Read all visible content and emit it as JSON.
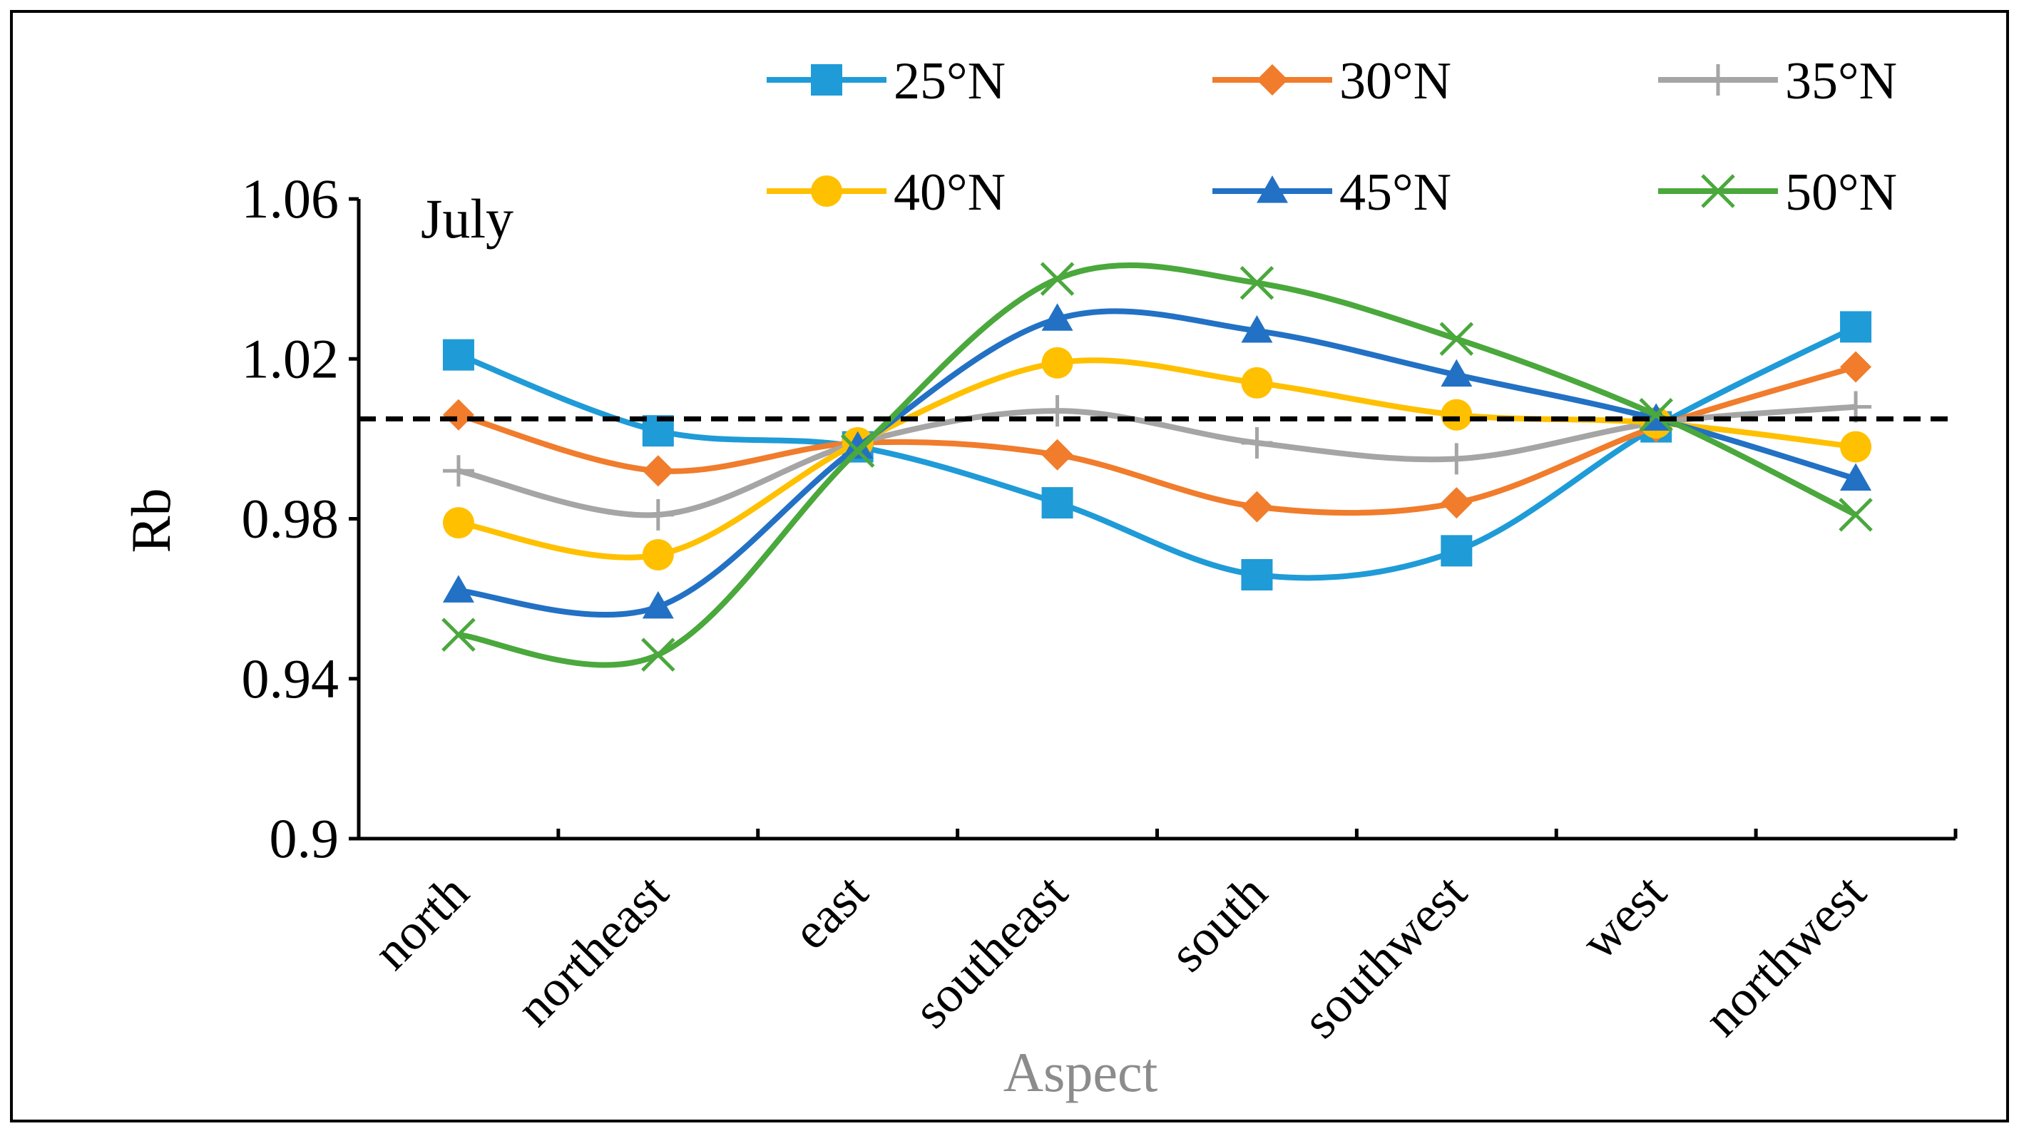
{
  "chart_data": {
    "type": "line",
    "panel_label": "July",
    "ylabel": "Rb",
    "xlabel": "Aspect",
    "categories": [
      "north",
      "northeast",
      "east",
      "southeast",
      "south",
      "southwest",
      "west",
      "northwest"
    ],
    "ylim": [
      0.9,
      1.06
    ],
    "yticks": [
      0.9,
      0.94,
      0.98,
      1.02,
      1.06
    ],
    "ytick_labels": [
      "0.9",
      "0.94",
      "0.98",
      "1.02",
      "1.06"
    ],
    "reference_line": 1.005,
    "legend_position": "top",
    "series": [
      {
        "name": "25°N",
        "color": "#1f9bd7",
        "marker": "square",
        "values": [
          1.021,
          1.002,
          0.998,
          0.984,
          0.966,
          0.972,
          1.003,
          1.028
        ]
      },
      {
        "name": "30°N",
        "color": "#f07c2c",
        "marker": "diamond",
        "values": [
          1.006,
          0.992,
          0.999,
          0.996,
          0.983,
          0.984,
          1.003,
          1.018
        ]
      },
      {
        "name": "35°N",
        "color": "#a5a5a5",
        "marker": "plus",
        "values": [
          0.992,
          0.981,
          0.999,
          1.007,
          0.999,
          0.995,
          1.004,
          1.008
        ]
      },
      {
        "name": "40°N",
        "color": "#ffc000",
        "marker": "circle",
        "values": [
          0.979,
          0.971,
          0.999,
          1.019,
          1.014,
          1.006,
          1.004,
          0.998
        ]
      },
      {
        "name": "45°N",
        "color": "#2271c4",
        "marker": "triangle",
        "values": [
          0.962,
          0.958,
          0.998,
          1.03,
          1.027,
          1.016,
          1.005,
          0.99
        ]
      },
      {
        "name": "50°N",
        "color": "#4aa83c",
        "marker": "x",
        "values": [
          0.951,
          0.946,
          0.997,
          1.04,
          1.039,
          1.025,
          1.006,
          0.981
        ]
      }
    ]
  }
}
